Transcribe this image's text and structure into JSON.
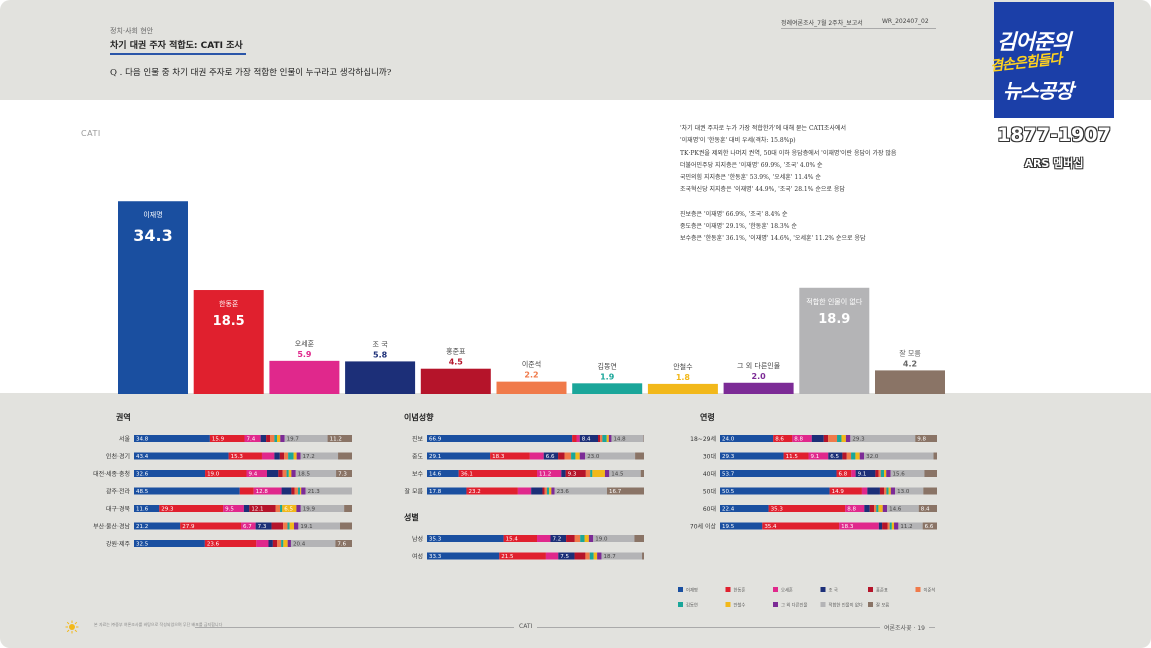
{
  "header": {
    "category": "정치·사회 현안",
    "title": "차기 대권 주자 적합도: CATI 조사",
    "question": "Q . 다음 인물 중 차기 대권 주자로 가장 적합한 인물이 누구라고 생각하십니까?",
    "report_name": "정례여론조사_7월 2주차_보고서",
    "report_code": "WR_202407_02"
  },
  "logo": {
    "line1": "김어준의",
    "line2": "겸손은힘들다",
    "line3": "뉴스공장",
    "phone": "1877-1907",
    "sub": "ARS 멤버십",
    "bg_color": "#1b3fa8",
    "accent_color": "#ffd21f"
  },
  "method_label": "CATI",
  "summary": {
    "lines_a": [
      "'차기 대권 주자로 누가 가장 적합한가'에 대해 묻는 CATI조사에서",
      "'이재명'이 '한동훈' 대비 우세(격차: 15.8%p)",
      "TK·PK권을 제외한 나머지 권역, 50대 이하 응답층에서 '이재명'이란 응답이 가장 많음",
      "더불어민주당 지지층은 '이재명' 69.9%, '조국' 4.0% 순",
      "국민의힘 지지층은 '한동훈' 53.9%, '오세훈' 11.4% 순",
      "조국혁신당 지지층은 '이재명' 44.9%, '조국' 28.1% 순으로 응답"
    ],
    "lines_b": [
      "진보층은 '이재명' 66.9%, '조국' 8.4% 순",
      "중도층은 '이재명' 29.1%, '한동훈' 18.3% 순",
      "보수층은 '한동훈' 36.1%, '이재명' 14.6%,  '오세훈' 11.2% 순으로 응답"
    ]
  },
  "chart_data": [
    {
      "type": "bar",
      "categories": [
        "이재명",
        "한동훈",
        "오세훈",
        "조 국",
        "홍준표",
        "이준석",
        "김동연",
        "안철수",
        "그 외 다른인물",
        "적합한 인물이 없다",
        "잘 모름"
      ],
      "values": [
        34.3,
        18.5,
        5.9,
        5.8,
        4.5,
        2.2,
        1.9,
        1.8,
        2.0,
        18.9,
        4.2
      ],
      "colors": [
        "#1a4fa0",
        "#e0202e",
        "#e0288c",
        "#1c2f78",
        "#b5142a",
        "#f07a4a",
        "#1aa69a",
        "#f2b81a",
        "#7c2b96",
        "#b4b4b6",
        "#8a7466"
      ],
      "label_colors": [
        "#ffffff",
        "#ffffff",
        "#e0288c",
        "#1c2f78",
        "#b5142a",
        "#f07a4a",
        "#1aa69a",
        "#f2b81a",
        "#7c2b96",
        "#ffffff",
        "#666666"
      ],
      "labels_inside": [
        true,
        true,
        false,
        false,
        false,
        false,
        false,
        false,
        false,
        true,
        false
      ]
    },
    {
      "type": "bar",
      "stacked": true,
      "orientation": "horizontal",
      "title": "권역",
      "categories": [
        "서울",
        "인천·경기",
        "대전·세종·충청",
        "광주·전라",
        "대구·경북",
        "부산·울산·경남",
        "강원·제주"
      ],
      "series": [
        {
          "name": "이재명",
          "values": [
            34.8,
            43.4,
            32.6,
            48.5,
            11.6,
            21.2,
            32.5
          ]
        },
        {
          "name": "한동훈",
          "values": [
            15.9,
            15.3,
            19.0,
            6.4,
            29.3,
            27.9,
            23.6
          ]
        },
        {
          "name": "오세훈",
          "values": [
            7.4,
            5.7,
            9.4,
            12.8,
            9.5,
            6.7,
            5.6
          ]
        },
        {
          "name": "조 국",
          "values": [
            2.5,
            2.5,
            5.2,
            4.5,
            2.5,
            7.3,
            2.0
          ]
        },
        {
          "name": "홍준표",
          "values": [
            1.8,
            2.0,
            2.0,
            1.5,
            12.1,
            5.3,
            2.0
          ]
        },
        {
          "name": "이준석",
          "values": [
            2.0,
            1.8,
            1.8,
            1.5,
            2.0,
            2.0,
            1.8
          ]
        },
        {
          "name": "김동연",
          "values": [
            1.2,
            2.5,
            1.0,
            1.0,
            1.0,
            1.0,
            1.0
          ]
        },
        {
          "name": "안철수",
          "values": [
            1.5,
            1.4,
            1.2,
            0.5,
            6.5,
            2.0,
            2.0
          ]
        },
        {
          "name": "그 외 다른인물",
          "values": [
            2.0,
            1.8,
            2.0,
            2.0,
            2.0,
            2.0,
            1.5
          ]
        },
        {
          "name": "적합한 인물이 없다",
          "values": [
            19.7,
            17.2,
            18.5,
            21.3,
            19.9,
            19.1,
            20.4
          ]
        },
        {
          "name": "잘 모름",
          "values": [
            11.2,
            6.4,
            7.3,
            0.0,
            3.6,
            5.5,
            7.6
          ]
        }
      ]
    },
    {
      "type": "bar",
      "stacked": true,
      "orientation": "horizontal",
      "title": "이념성향",
      "categories": [
        "진보",
        "중도",
        "보수",
        "잘 모름"
      ],
      "series": [
        {
          "name": "이재명",
          "values": [
            66.9,
            29.1,
            14.6,
            17.8
          ]
        },
        {
          "name": "한동훈",
          "values": [
            2.0,
            18.3,
            36.1,
            23.2
          ]
        },
        {
          "name": "오세훈",
          "values": [
            1.5,
            6.4,
            11.2,
            6.0
          ]
        },
        {
          "name": "조 국",
          "values": [
            8.4,
            6.6,
            2.0,
            5.1
          ]
        },
        {
          "name": "홍준표",
          "values": [
            1.0,
            3.0,
            9.3,
            1.0
          ]
        },
        {
          "name": "이준석",
          "values": [
            1.0,
            3.0,
            2.0,
            1.0
          ]
        },
        {
          "name": "김동연",
          "values": [
            2.0,
            2.0,
            1.0,
            1.0
          ]
        },
        {
          "name": "안철수",
          "values": [
            1.0,
            2.0,
            5.8,
            1.0
          ]
        },
        {
          "name": "그 외 다른인물",
          "values": [
            1.2,
            2.5,
            2.0,
            1.5
          ]
        },
        {
          "name": "적합한 인물이 없다",
          "values": [
            14.8,
            23.0,
            14.5,
            23.6
          ]
        },
        {
          "name": "잘 모름",
          "values": [
            0.2,
            4.1,
            1.5,
            16.7
          ]
        }
      ]
    },
    {
      "type": "bar",
      "stacked": true,
      "orientation": "horizontal",
      "title": "성별",
      "categories": [
        "남성",
        "여성"
      ],
      "series": [
        {
          "name": "이재명",
          "values": [
            35.3,
            33.3
          ]
        },
        {
          "name": "한동훈",
          "values": [
            15.4,
            21.5
          ]
        },
        {
          "name": "오세훈",
          "values": [
            6.2,
            5.7
          ]
        },
        {
          "name": "조 국",
          "values": [
            7.2,
            7.5
          ]
        },
        {
          "name": "홍준표",
          "values": [
            4.0,
            5.0
          ]
        },
        {
          "name": "이준석",
          "values": [
            2.5,
            2.0
          ]
        },
        {
          "name": "김동연",
          "values": [
            2.0,
            1.8
          ]
        },
        {
          "name": "안철수",
          "values": [
            2.0,
            1.6
          ]
        },
        {
          "name": "그 외 다른인물",
          "values": [
            2.0,
            2.0
          ]
        },
        {
          "name": "적합한 인물이 없다",
          "values": [
            19.0,
            18.7
          ]
        },
        {
          "name": "잘 모름",
          "values": [
            4.4,
            0.9
          ]
        }
      ]
    },
    {
      "type": "bar",
      "stacked": true,
      "orientation": "horizontal",
      "title": "연령",
      "categories": [
        "18~29세",
        "30대",
        "40대",
        "50대",
        "60대",
        "70세 이상"
      ],
      "series": [
        {
          "name": "이재명",
          "values": [
            24.0,
            29.3,
            53.7,
            50.5,
            22.4,
            19.5
          ]
        },
        {
          "name": "한동훈",
          "values": [
            8.6,
            11.5,
            6.8,
            14.9,
            35.3,
            35.4
          ]
        },
        {
          "name": "오세훈",
          "values": [
            8.8,
            9.1,
            2.0,
            2.5,
            8.8,
            18.3
          ]
        },
        {
          "name": "조 국",
          "values": [
            5.4,
            6.5,
            9.1,
            5.8,
            2.5,
            1.5
          ]
        },
        {
          "name": "홍준표",
          "values": [
            2.0,
            2.0,
            1.5,
            2.0,
            2.0,
            2.5
          ]
        },
        {
          "name": "이준석",
          "values": [
            4.0,
            2.0,
            1.0,
            1.0,
            1.0,
            1.0
          ]
        },
        {
          "name": "김동연",
          "values": [
            2.0,
            2.0,
            1.5,
            1.0,
            1.0,
            1.0
          ]
        },
        {
          "name": "안철수",
          "values": [
            2.0,
            2.0,
            1.0,
            1.0,
            2.0,
            1.0
          ]
        },
        {
          "name": "그 외 다른인물",
          "values": [
            2.0,
            2.0,
            2.0,
            2.0,
            2.0,
            2.0
          ]
        },
        {
          "name": "적합한 인물이 없다",
          "values": [
            29.3,
            32.0,
            15.6,
            13.0,
            14.6,
            11.2
          ]
        },
        {
          "name": "잘 모름",
          "values": [
            9.8,
            1.6,
            5.8,
            6.3,
            8.4,
            6.6
          ]
        }
      ]
    }
  ],
  "footer": {
    "note": "본 자료는 ㈜중부 여론조사를 바탕으로 작성되었으며 무단 배포를 금지합니다",
    "center": "CATI",
    "right": "여론조사꽃 · 19"
  }
}
